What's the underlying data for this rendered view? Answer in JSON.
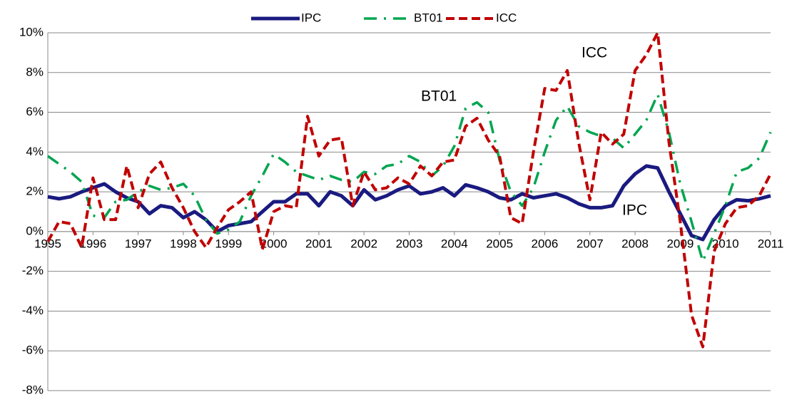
{
  "chart_data": {
    "type": "line",
    "x": [
      1995,
      1995.25,
      1995.5,
      1995.75,
      1996,
      1996.25,
      1996.5,
      1996.75,
      1997,
      1997.25,
      1997.5,
      1997.75,
      1998,
      1998.25,
      1998.5,
      1998.75,
      1999,
      1999.25,
      1999.5,
      1999.75,
      2000,
      2000.25,
      2000.5,
      2000.75,
      2001,
      2001.25,
      2001.5,
      2001.75,
      2002,
      2002.25,
      2002.5,
      2002.75,
      2003,
      2003.25,
      2003.5,
      2003.75,
      2004,
      2004.25,
      2004.5,
      2004.75,
      2005,
      2005.25,
      2005.5,
      2005.75,
      2006,
      2006.25,
      2006.5,
      2006.75,
      2007,
      2007.25,
      2007.5,
      2007.75,
      2008,
      2008.25,
      2008.5,
      2008.75,
      2009,
      2009.25,
      2009.5,
      2009.75,
      2010,
      2010.25,
      2010.5,
      2010.75,
      2011
    ],
    "series": [
      {
        "name": "IPC",
        "color": "#1a1a80",
        "values": [
          1.75,
          1.65,
          1.75,
          2.0,
          2.2,
          2.4,
          2.0,
          1.7,
          1.5,
          0.9,
          1.3,
          1.2,
          0.7,
          1.0,
          0.6,
          0.0,
          0.3,
          0.4,
          0.5,
          1.0,
          1.5,
          1.5,
          1.9,
          1.9,
          1.3,
          2.0,
          1.8,
          1.3,
          2.1,
          1.6,
          1.8,
          2.1,
          2.3,
          1.9,
          2.0,
          2.2,
          1.8,
          2.35,
          2.2,
          2.0,
          1.7,
          1.6,
          1.9,
          1.7,
          1.8,
          1.9,
          1.7,
          1.4,
          1.2,
          1.2,
          1.3,
          2.3,
          2.9,
          3.3,
          3.2,
          2.0,
          0.9,
          -0.2,
          -0.4,
          0.6,
          1.3,
          1.6,
          1.55,
          1.65,
          1.8
        ]
      },
      {
        "name": "BT01",
        "color": "#00a550",
        "values": [
          3.8,
          3.4,
          3.0,
          2.5,
          0.8,
          0.7,
          1.5,
          1.6,
          2.0,
          2.3,
          2.1,
          2.2,
          2.4,
          1.8,
          0.6,
          -0.1,
          0.1,
          0.5,
          1.8,
          2.8,
          3.9,
          3.5,
          3.0,
          2.8,
          2.6,
          2.8,
          2.6,
          2.5,
          3.0,
          2.9,
          3.3,
          3.4,
          3.8,
          3.5,
          2.8,
          3.3,
          4.3,
          6.2,
          6.5,
          6.0,
          3.6,
          2.0,
          1.3,
          2.2,
          4.0,
          5.6,
          6.3,
          5.3,
          5.0,
          4.8,
          4.7,
          4.2,
          4.9,
          5.6,
          6.9,
          5.0,
          2.4,
          0.5,
          -1.5,
          -0.1,
          1.3,
          3.0,
          3.2,
          3.7,
          5.0
        ]
      },
      {
        "name": "ICC",
        "color": "#c00000",
        "values": [
          -0.5,
          0.5,
          0.4,
          -0.8,
          2.7,
          0.6,
          0.6,
          3.3,
          1.2,
          2.9,
          3.5,
          2.2,
          1.2,
          0.0,
          -0.8,
          0.2,
          1.1,
          1.5,
          2.0,
          -0.9,
          1.0,
          1.3,
          1.2,
          5.8,
          3.8,
          4.6,
          4.7,
          1.3,
          3.0,
          2.1,
          2.2,
          2.7,
          2.4,
          3.3,
          2.8,
          3.5,
          3.6,
          5.3,
          5.7,
          4.6,
          3.8,
          0.7,
          0.4,
          4.0,
          7.2,
          7.1,
          8.1,
          4.5,
          1.6,
          5.0,
          4.4,
          4.9,
          8.1,
          8.9,
          10.0,
          4.5,
          0.5,
          -4.2,
          -5.8,
          -1.0,
          0.4,
          1.2,
          1.3,
          1.8,
          2.9
        ]
      }
    ],
    "annotations": [
      "ICC",
      "BT01",
      "IPC"
    ],
    "xlim": [
      1995,
      2011
    ],
    "xticks": [
      1995,
      1996,
      1997,
      1998,
      1999,
      2000,
      2001,
      2002,
      2003,
      2004,
      2005,
      2006,
      2007,
      2008,
      2009,
      2010,
      2011
    ],
    "ylim": [
      -8,
      10
    ],
    "yticks": [
      {
        "value": -8,
        "label": "-8%"
      },
      {
        "value": -6,
        "label": "-6%"
      },
      {
        "value": -4,
        "label": "-4%"
      },
      {
        "value": -2,
        "label": "-2%"
      },
      {
        "value": 0,
        "label": "0%"
      },
      {
        "value": 2,
        "label": "2%"
      },
      {
        "value": 4,
        "label": "4%"
      },
      {
        "value": 6,
        "label": "6%"
      },
      {
        "value": 8,
        "label": "8%"
      },
      {
        "value": 10,
        "label": "10%"
      }
    ],
    "grid": true
  }
}
